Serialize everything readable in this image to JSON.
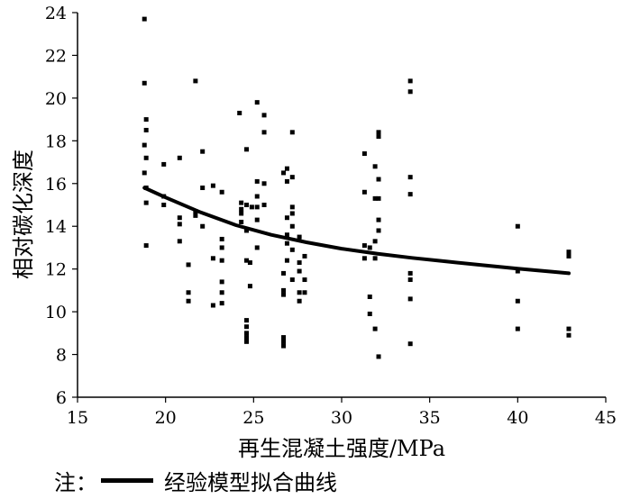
{
  "chart_data": {
    "type": "scatter",
    "title": "",
    "xlabel": "再生混凝土强度/MPa",
    "ylabel": "相对碳化深度",
    "xlim": [
      15,
      45
    ],
    "ylim": [
      6,
      24
    ],
    "xticks": [
      15,
      20,
      25,
      30,
      35,
      40,
      45
    ],
    "yticks": [
      6,
      8,
      10,
      12,
      14,
      16,
      18,
      20,
      22,
      24
    ],
    "grid": false,
    "legend": "none",
    "series": [
      {
        "kind": "points",
        "marker": "square",
        "color": "#000000",
        "points": [
          [
            18.8,
            23.7
          ],
          [
            18.8,
            20.7
          ],
          [
            18.9,
            19.0
          ],
          [
            18.9,
            18.5
          ],
          [
            18.8,
            17.8
          ],
          [
            18.9,
            17.2
          ],
          [
            18.8,
            16.5
          ],
          [
            18.9,
            15.8
          ],
          [
            18.9,
            15.1
          ],
          [
            18.9,
            13.1
          ],
          [
            19.9,
            16.9
          ],
          [
            19.9,
            15.4
          ],
          [
            19.9,
            15.0
          ],
          [
            20.8,
            17.2
          ],
          [
            20.8,
            14.4
          ],
          [
            20.8,
            14.1
          ],
          [
            20.8,
            13.3
          ],
          [
            21.3,
            12.2
          ],
          [
            21.3,
            10.9
          ],
          [
            21.3,
            10.5
          ],
          [
            21.7,
            20.8
          ],
          [
            21.7,
            14.7
          ],
          [
            21.7,
            14.5
          ],
          [
            22.1,
            17.5
          ],
          [
            22.1,
            15.8
          ],
          [
            22.1,
            14.0
          ],
          [
            22.7,
            15.9
          ],
          [
            22.7,
            12.5
          ],
          [
            22.7,
            10.3
          ],
          [
            23.2,
            15.6
          ],
          [
            23.2,
            13.4
          ],
          [
            23.2,
            13.0
          ],
          [
            23.2,
            12.4
          ],
          [
            23.2,
            11.4
          ],
          [
            23.2,
            10.9
          ],
          [
            23.2,
            10.4
          ],
          [
            24.2,
            19.3
          ],
          [
            24.3,
            15.1
          ],
          [
            24.3,
            14.8
          ],
          [
            24.3,
            14.6
          ],
          [
            24.3,
            14.2
          ],
          [
            24.6,
            17.6
          ],
          [
            24.6,
            15.0
          ],
          [
            24.6,
            13.8
          ],
          [
            24.6,
            12.4
          ],
          [
            24.6,
            9.6
          ],
          [
            24.6,
            9.3
          ],
          [
            24.6,
            9.0
          ],
          [
            24.6,
            8.8
          ],
          [
            24.6,
            8.6
          ],
          [
            24.9,
            14.9
          ],
          [
            24.8,
            12.3
          ],
          [
            24.8,
            11.2
          ],
          [
            25.2,
            19.8
          ],
          [
            25.2,
            16.1
          ],
          [
            25.2,
            15.4
          ],
          [
            25.2,
            14.9
          ],
          [
            25.2,
            14.3
          ],
          [
            25.2,
            13.0
          ],
          [
            25.6,
            19.2
          ],
          [
            25.6,
            18.4
          ],
          [
            25.6,
            16.0
          ],
          [
            25.6,
            15.0
          ],
          [
            26.7,
            16.5
          ],
          [
            26.7,
            11.8
          ],
          [
            26.7,
            11.0
          ],
          [
            26.7,
            10.8
          ],
          [
            26.7,
            8.8
          ],
          [
            26.7,
            8.6
          ],
          [
            26.7,
            8.4
          ],
          [
            26.9,
            16.7
          ],
          [
            26.9,
            16.1
          ],
          [
            26.9,
            14.4
          ],
          [
            26.9,
            13.6
          ],
          [
            26.9,
            13.2
          ],
          [
            26.9,
            12.4
          ],
          [
            27.2,
            18.4
          ],
          [
            27.2,
            16.3
          ],
          [
            27.2,
            14.9
          ],
          [
            27.2,
            14.6
          ],
          [
            27.2,
            14.0
          ],
          [
            27.2,
            12.9
          ],
          [
            27.2,
            11.5
          ],
          [
            27.6,
            13.5
          ],
          [
            27.6,
            12.3
          ],
          [
            27.6,
            11.9
          ],
          [
            27.6,
            10.9
          ],
          [
            27.6,
            10.5
          ],
          [
            27.9,
            12.6
          ],
          [
            27.9,
            11.5
          ],
          [
            27.9,
            10.9
          ],
          [
            31.3,
            17.4
          ],
          [
            31.3,
            15.6
          ],
          [
            31.3,
            13.1
          ],
          [
            31.3,
            12.5
          ],
          [
            31.6,
            13.0
          ],
          [
            31.6,
            10.7
          ],
          [
            31.6,
            9.9
          ],
          [
            31.9,
            16.8
          ],
          [
            31.9,
            15.3
          ],
          [
            31.9,
            13.3
          ],
          [
            31.9,
            12.5
          ],
          [
            31.9,
            9.2
          ],
          [
            32.1,
            18.4
          ],
          [
            32.1,
            18.2
          ],
          [
            32.1,
            16.2
          ],
          [
            32.1,
            15.3
          ],
          [
            32.1,
            14.3
          ],
          [
            32.1,
            13.8
          ],
          [
            32.1,
            7.9
          ],
          [
            33.9,
            20.8
          ],
          [
            33.9,
            20.3
          ],
          [
            33.9,
            16.3
          ],
          [
            33.9,
            15.5
          ],
          [
            33.9,
            11.8
          ],
          [
            33.9,
            11.5
          ],
          [
            33.9,
            10.6
          ],
          [
            33.9,
            8.5
          ],
          [
            40.0,
            14.0
          ],
          [
            40.0,
            11.9
          ],
          [
            40.0,
            10.5
          ],
          [
            40.0,
            9.2
          ],
          [
            42.9,
            12.8
          ],
          [
            42.9,
            12.6
          ],
          [
            42.9,
            9.2
          ],
          [
            42.9,
            8.9
          ]
        ]
      },
      {
        "name": "经验模型拟合曲线",
        "kind": "curve",
        "color": "#000000",
        "x": [
          18.8,
          20,
          22,
          24,
          26,
          28,
          30,
          32,
          34,
          36,
          38,
          40,
          42,
          42.9
        ],
        "y": [
          15.8,
          15.35,
          14.65,
          14.05,
          13.6,
          13.25,
          12.95,
          12.72,
          12.52,
          12.35,
          12.18,
          12.02,
          11.87,
          11.8
        ]
      }
    ],
    "note_prefix": "注：",
    "note_label": "经验模型拟合曲线"
  }
}
